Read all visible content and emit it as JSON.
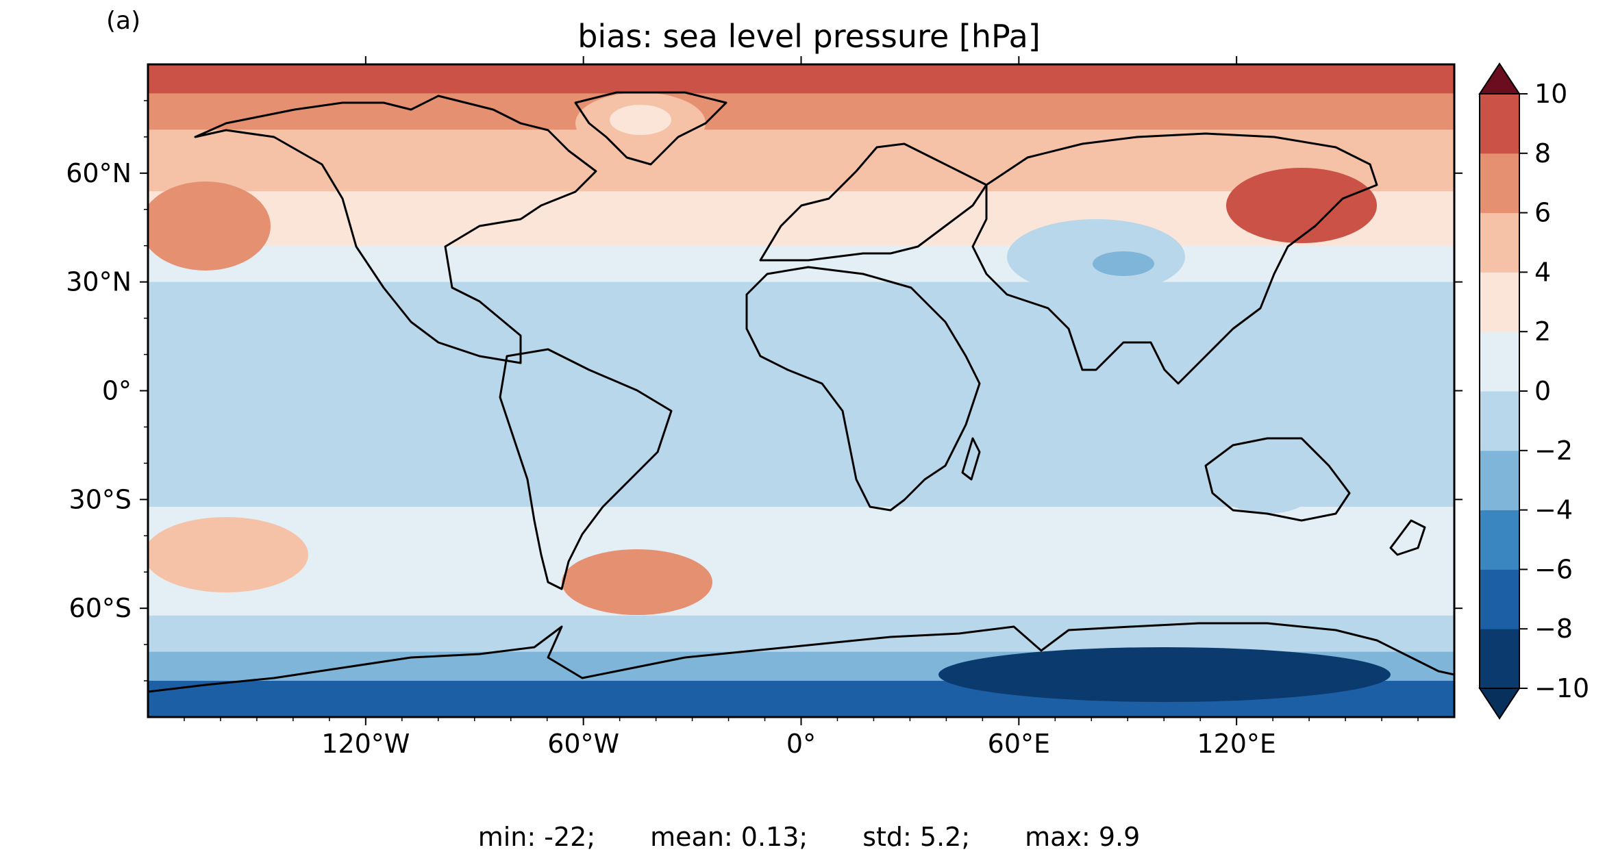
{
  "panel_label": "(a)",
  "title": "bias: sea level pressure [hPa]",
  "map": {
    "projection": "plate-carree",
    "lon_range": [
      -180,
      180
    ],
    "lat_range": [
      -90,
      90
    ],
    "lon_ticks": [
      {
        "value": -120,
        "label": "120°W"
      },
      {
        "value": -60,
        "label": "60°W"
      },
      {
        "value": 0,
        "label": "0°"
      },
      {
        "value": 60,
        "label": "60°E"
      },
      {
        "value": 120,
        "label": "120°E"
      }
    ],
    "lat_ticks": [
      {
        "value": 60,
        "label": "60°N"
      },
      {
        "value": 30,
        "label": "30°N"
      },
      {
        "value": 0,
        "label": "0°"
      },
      {
        "value": -30,
        "label": "30°S"
      },
      {
        "value": -60,
        "label": "60°S"
      }
    ],
    "coastlines": true,
    "field_bands": [
      {
        "lat_from": 90,
        "lat_to": 82,
        "value": 9
      },
      {
        "lat_from": 82,
        "lat_to": 72,
        "value": 7
      },
      {
        "lat_from": 72,
        "lat_to": 55,
        "value": 5
      },
      {
        "lat_from": 55,
        "lat_to": 40,
        "value": 3
      },
      {
        "lat_from": 40,
        "lat_to": 30,
        "value": 1
      },
      {
        "lat_from": 30,
        "lat_to": 15,
        "value": -1
      },
      {
        "lat_from": 15,
        "lat_to": -25,
        "value": -1
      },
      {
        "lat_from": -25,
        "lat_to": -32,
        "value": -1
      },
      {
        "lat_from": -32,
        "lat_to": -52,
        "value": 1
      },
      {
        "lat_from": -52,
        "lat_to": -62,
        "value": 1
      },
      {
        "lat_from": -62,
        "lat_to": -72,
        "value": -1
      },
      {
        "lat_from": -72,
        "lat_to": -80,
        "value": -3
      },
      {
        "lat_from": -80,
        "lat_to": -90,
        "value": -7
      }
    ]
  },
  "colorbar": {
    "levels": [
      -10,
      -8,
      -6,
      -4,
      -2,
      0,
      2,
      4,
      6,
      8,
      10
    ],
    "tick_labels": [
      "10",
      "8",
      "6",
      "4",
      "2",
      "0",
      "−2",
      "−4",
      "−6",
      "−8",
      "−10"
    ],
    "extend": "both",
    "colors": [
      "#0b3a6e",
      "#1c5fa5",
      "#3a86c0",
      "#7fb5d8",
      "#b9d7ea",
      "#e4eef5",
      "#fbe4d8",
      "#f6c2a7",
      "#e69072",
      "#cb5246",
      "#a8202e"
    ],
    "over_color": "#6a0d1f",
    "under_color": "#08305c"
  },
  "stats": {
    "min": "min: -22;",
    "mean": "mean: 0.13;",
    "std": "std: 5.2;",
    "max": "max: 9.9"
  }
}
